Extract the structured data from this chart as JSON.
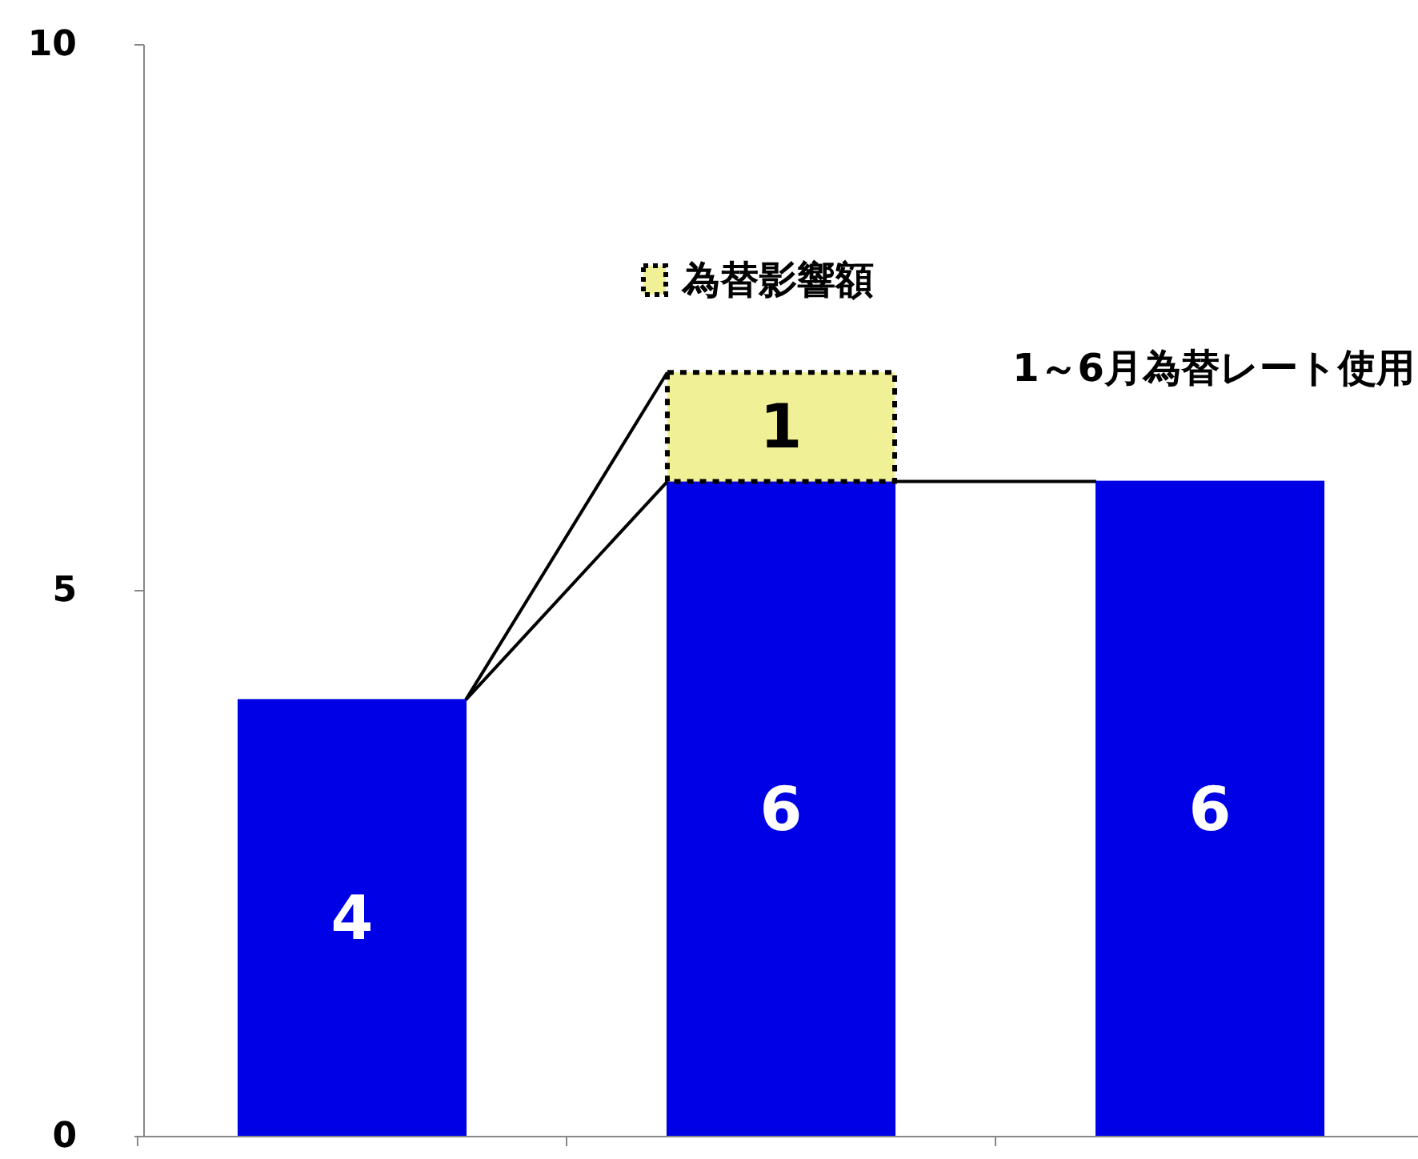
{
  "chart_data": {
    "type": "bar",
    "stacked": true,
    "categories": [
      null,
      null,
      null
    ],
    "series": [
      {
        "color": "#0000e6",
        "values": [
          4,
          6,
          6
        ]
      },
      {
        "name": "為替影響額",
        "color": "#f0f096",
        "values": [
          null,
          1,
          null
        ]
      }
    ],
    "ylim": [
      0,
      10
    ],
    "yticks": [
      0,
      5,
      10
    ],
    "data_labels": true,
    "legend": "top",
    "grid": false,
    "annotations": [
      "1～6月為替レート使用"
    ]
  }
}
